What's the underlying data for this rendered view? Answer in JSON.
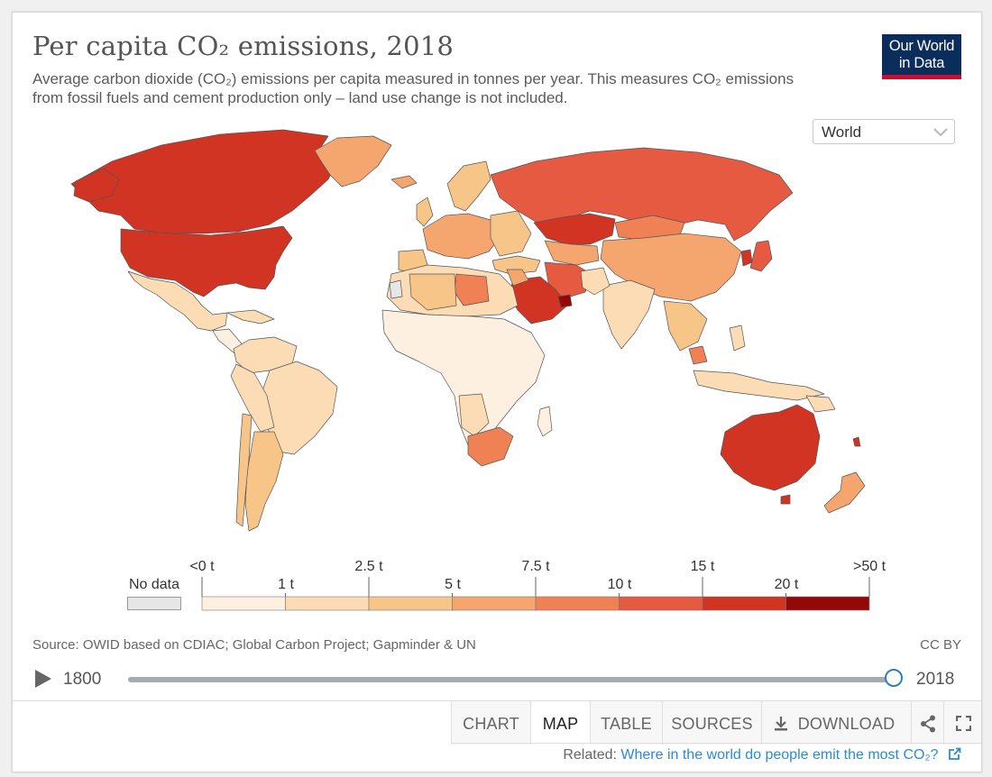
{
  "header": {
    "title": "Per capita CO₂ emissions, 2018",
    "subtitle": "Average carbon dioxide (CO₂) emissions per capita measured in tonnes per year. This measures CO₂ emissions from fossil fuels and cement production only – land use change is not included.",
    "logo_line1": "Our World",
    "logo_line2": "in Data"
  },
  "region_select": {
    "value": "World"
  },
  "legend": {
    "no_data_label": "No data",
    "no_data_color": "#e6e6e6",
    "top_labels": [
      "<0 t",
      "2.5 t",
      "7.5 t",
      "15 t",
      ">50 t"
    ],
    "bottom_labels": [
      "1 t",
      "5 t",
      "10 t",
      "20 t"
    ],
    "bins": [
      {
        "range": "0–1 t",
        "color": "#fdf0e0"
      },
      {
        "range": "1–2.5 t",
        "color": "#fbdcb4"
      },
      {
        "range": "2.5–5 t",
        "color": "#f8c589"
      },
      {
        "range": "5–7.5 t",
        "color": "#f5a56e"
      },
      {
        "range": "7.5–10 t",
        "color": "#ef8155"
      },
      {
        "range": "10–15 t",
        "color": "#e65a42"
      },
      {
        "range": "15–20 t",
        "color": "#d13422"
      },
      {
        "range": "20–50 t",
        "color": "#950808"
      }
    ]
  },
  "footer": {
    "source": "Source: OWID based on CDIAC; Global Carbon Project; Gapminder & UN",
    "license": "CC BY"
  },
  "timeline": {
    "start_year": "1800",
    "end_year": "2018"
  },
  "tabs": [
    {
      "label": "CHART"
    },
    {
      "label": "MAP"
    },
    {
      "label": "TABLE"
    },
    {
      "label": "SOURCES"
    },
    {
      "label": "DOWNLOAD"
    }
  ],
  "related": {
    "prefix": "Related: ",
    "link": "Where in the world do people emit the most CO₂?"
  },
  "colors": {
    "accent_blue": "#2b7fc4",
    "logo_bg": "#0b2d5b",
    "logo_bar": "#c8102e"
  }
}
